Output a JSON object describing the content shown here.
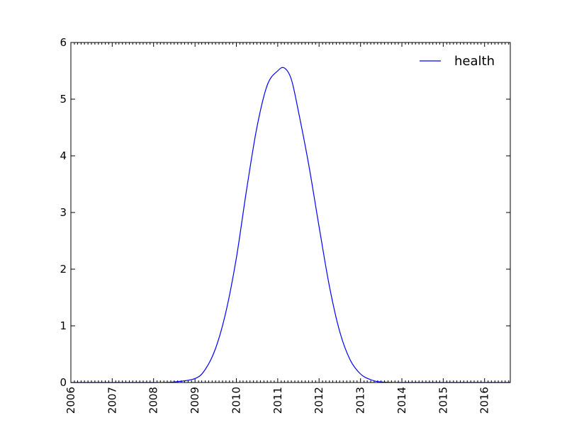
{
  "chart_data": {
    "type": "line",
    "title": "",
    "xlabel": "",
    "ylabel": "",
    "xlim": [
      "2006-01-01",
      "2016-08-15"
    ],
    "ylim": [
      0,
      6
    ],
    "x_ticks": [
      "2006",
      "2007",
      "2008",
      "2009",
      "2010",
      "2011",
      "2012",
      "2013",
      "2014",
      "2015",
      "2016"
    ],
    "y_ticks": [
      "0",
      "1",
      "2",
      "3",
      "4",
      "5",
      "6"
    ],
    "grid": false,
    "legend_position": "top-right",
    "series": [
      {
        "name": "health",
        "color": "#0000ff",
        "x": [
          "2006-01-01",
          "2008-01-01",
          "2008-07-01",
          "2009-01-01",
          "2009-04-01",
          "2009-07-01",
          "2009-10-01",
          "2010-01-01",
          "2010-04-01",
          "2010-07-01",
          "2010-10-01",
          "2011-01-01",
          "2011-03-01",
          "2011-05-01",
          "2011-07-01",
          "2011-10-01",
          "2012-01-01",
          "2012-04-01",
          "2012-07-01",
          "2012-10-01",
          "2013-01-01",
          "2013-04-01",
          "2013-07-01",
          "2014-01-01",
          "2015-01-01",
          "2016-08-15"
        ],
        "y": [
          0,
          0,
          0.01,
          0.07,
          0.23,
          0.6,
          1.25,
          2.2,
          3.4,
          4.5,
          5.25,
          5.5,
          5.55,
          5.35,
          4.8,
          3.85,
          2.75,
          1.7,
          0.9,
          0.4,
          0.15,
          0.05,
          0.01,
          0,
          0,
          0
        ]
      }
    ]
  }
}
